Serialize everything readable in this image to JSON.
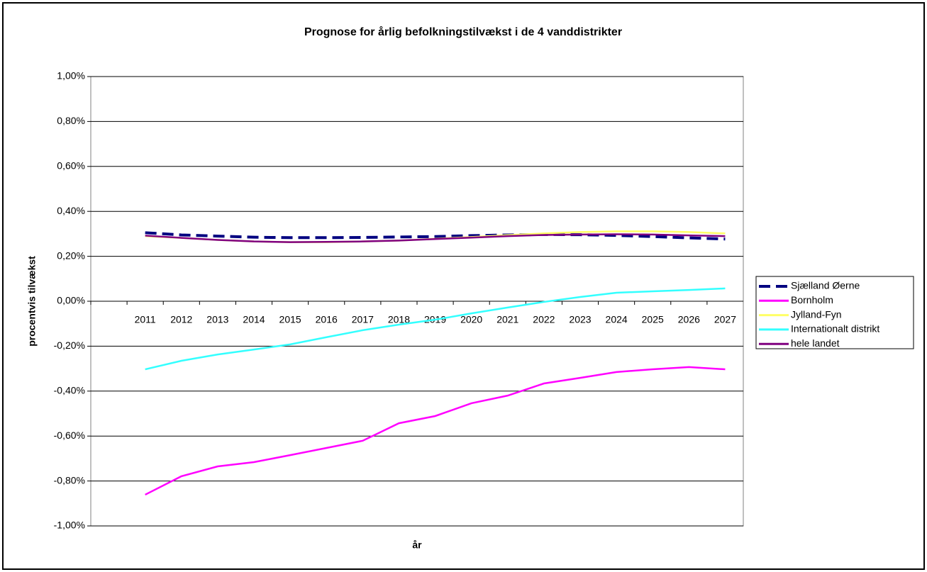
{
  "chart_data": {
    "type": "line",
    "title": "Prognose for årlig befolkningstilvækst i de 4 vanddistrikter",
    "x_label": "år",
    "y_label": "procentvis tilvækst",
    "categories": [
      null,
      "2011",
      "2012",
      "2013",
      "2014",
      "2015",
      "2016",
      "2017",
      "2018",
      "2019",
      "2020",
      "2021",
      "2022",
      "2023",
      "2024",
      "2025",
      "2026",
      "2027"
    ],
    "ylim": [
      -1.0,
      1.0
    ],
    "yticks": [
      {
        "value": 1.0,
        "label": "1,00%"
      },
      {
        "value": 0.8,
        "label": "0,80%"
      },
      {
        "value": 0.6,
        "label": "0,60%"
      },
      {
        "value": 0.4,
        "label": "0,40%"
      },
      {
        "value": 0.2,
        "label": "0,20%"
      },
      {
        "value": 0.0,
        "label": "0,00%"
      },
      {
        "value": -0.2,
        "label": "-0,20%"
      },
      {
        "value": -0.4,
        "label": "-0,40%"
      },
      {
        "value": -0.6,
        "label": "-0,60%"
      },
      {
        "value": -0.8,
        "label": "-0,80%"
      },
      {
        "value": -1.0,
        "label": "-1,00%"
      }
    ],
    "grid": true,
    "legend": "right",
    "series": [
      {
        "name": "Sjælland Øerne",
        "color": "#000080",
        "dash": true,
        "values": [
          null,
          0.305,
          0.295,
          0.29,
          0.285,
          0.283,
          0.283,
          0.284,
          0.286,
          0.288,
          0.292,
          0.295,
          0.297,
          0.296,
          0.293,
          0.288,
          0.282,
          0.277
        ]
      },
      {
        "name": "Bornholm",
        "color": "#ff00ff",
        "values": [
          null,
          -0.861,
          -0.779,
          -0.735,
          -0.716,
          -0.685,
          -0.653,
          -0.621,
          -0.543,
          -0.511,
          -0.454,
          -0.42,
          -0.366,
          -0.341,
          -0.315,
          -0.303,
          -0.293,
          -0.303
        ]
      },
      {
        "name": "Jylland-Fyn",
        "color": "#ffff66",
        "values": [
          null,
          0.29,
          0.282,
          0.273,
          0.266,
          0.263,
          0.263,
          0.266,
          0.27,
          0.278,
          0.286,
          0.294,
          0.302,
          0.308,
          0.311,
          0.311,
          0.308,
          0.302
        ]
      },
      {
        "name": "Internationalt distrikt",
        "color": "#33ffff",
        "values": [
          null,
          -0.303,
          -0.265,
          -0.237,
          -0.215,
          -0.192,
          -0.16,
          -0.129,
          -0.104,
          -0.082,
          -0.054,
          -0.028,
          -0.003,
          0.019,
          0.038,
          0.044,
          0.05,
          0.057
        ]
      },
      {
        "name": "hele landet",
        "color": "#800080",
        "values": [
          null,
          0.292,
          0.282,
          0.273,
          0.266,
          0.263,
          0.264,
          0.266,
          0.27,
          0.277,
          0.283,
          0.29,
          0.295,
          0.297,
          0.298,
          0.297,
          0.293,
          0.29
        ]
      }
    ]
  }
}
